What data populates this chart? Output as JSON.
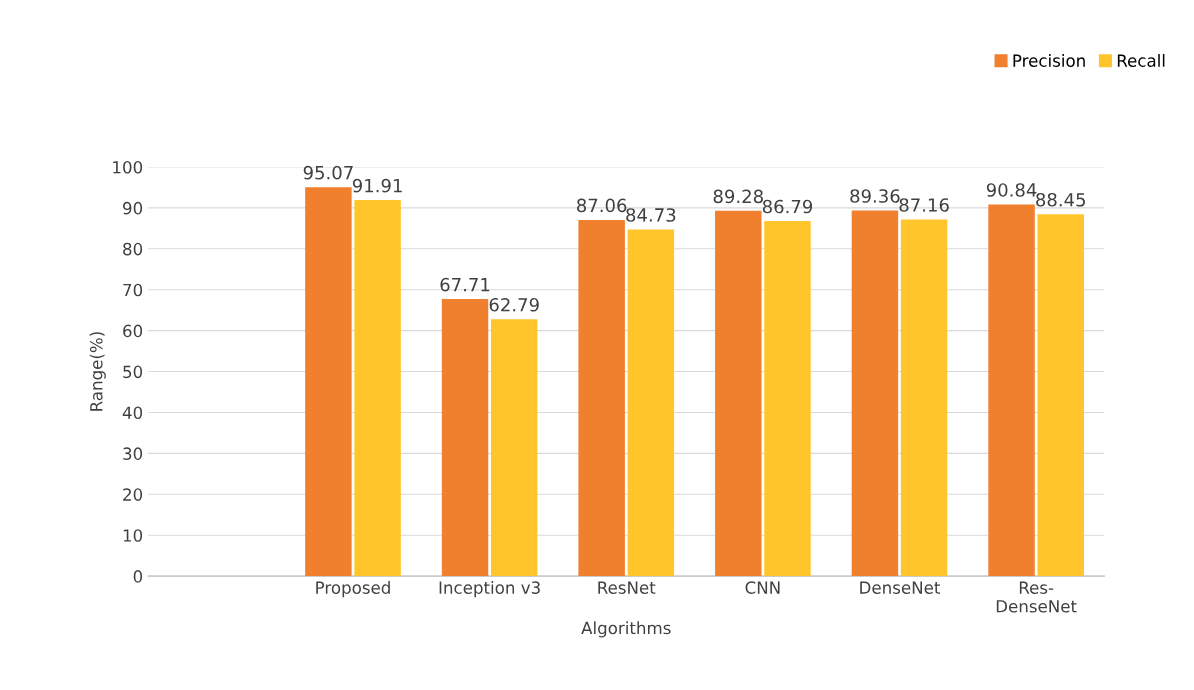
{
  "chart_data": {
    "type": "bar",
    "xlabel": "Algorithms",
    "ylabel": "Range(%)",
    "categories": [
      null,
      "Proposed",
      "Inception v3",
      "ResNet",
      "CNN",
      "DenseNet",
      "Res-\nDenseNet"
    ],
    "series": [
      {
        "name": "Precision",
        "color": "#f07f2e",
        "values": [
          null,
          95.07,
          67.71,
          87.06,
          89.28,
          89.36,
          90.84
        ]
      },
      {
        "name": "Recall",
        "color": "#ffc52a",
        "values": [
          null,
          91.91,
          62.79,
          84.73,
          86.79,
          87.16,
          88.45
        ]
      }
    ],
    "ylim": [
      0,
      100
    ],
    "yticks": [
      0,
      10,
      20,
      30,
      40,
      50,
      60,
      70,
      80,
      90,
      100
    ],
    "grid": "y",
    "legend": "top right",
    "data_labels": true
  }
}
